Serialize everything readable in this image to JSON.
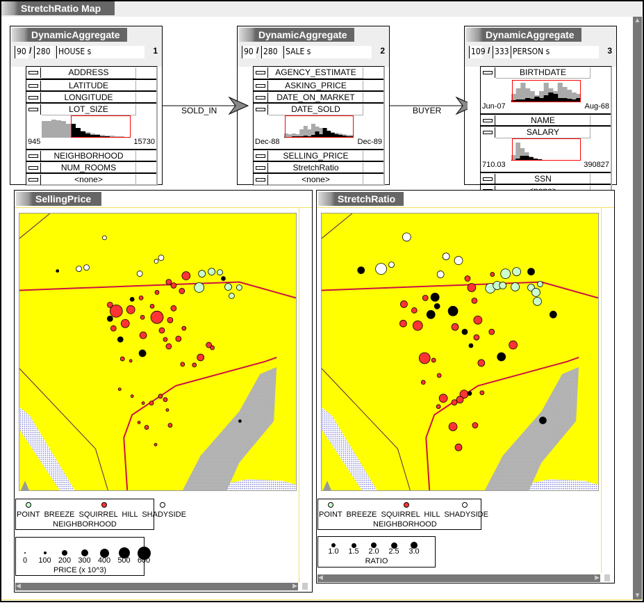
{
  "window": {
    "title": "StretchRatio Map"
  },
  "aggregates": [
    {
      "title": "DynamicAggregate",
      "selected": "90",
      "total": "280",
      "relation": "HOUSE s",
      "index": "1",
      "attributes": [
        {
          "label": "ADDRESS"
        },
        {
          "label": "LATITUDE"
        },
        {
          "label": "LONGITUDE"
        },
        {
          "label": "LOT_SIZE",
          "hist": {
            "lo": "945",
            "hi": "15730"
          }
        },
        {
          "label": "NEIGHBORHOOD"
        },
        {
          "label": "NUM_ROOMS"
        },
        {
          "label": "<none>"
        }
      ]
    },
    {
      "title": "DynamicAggregate",
      "selected": "90",
      "total": "280",
      "relation": "SALE s",
      "index": "2",
      "attributes": [
        {
          "label": "AGENCY_ESTIMATE"
        },
        {
          "label": "ASKING_PRICE"
        },
        {
          "label": "DATE_ON_MARKET"
        },
        {
          "label": "DATE_SOLD",
          "hist": {
            "lo": "Dec-88",
            "hi": "Dec-89"
          }
        },
        {
          "label": "SELLING_PRICE"
        },
        {
          "label": "StretchRatio"
        },
        {
          "label": "<none>"
        }
      ]
    },
    {
      "title": "DynamicAggregate",
      "selected": "109",
      "total": "333",
      "relation": "PERSON s",
      "index": "3",
      "attributes": [
        {
          "label": "BIRTHDATE",
          "hist": {
            "lo": "Jun-07",
            "hi": "Aug-68"
          }
        },
        {
          "label": "NAME"
        },
        {
          "label": "SALARY",
          "hist": {
            "lo": "710.03",
            "hi": "390827"
          }
        },
        {
          "label": "SSN"
        },
        {
          "label": "<none>"
        }
      ]
    }
  ],
  "relations": [
    {
      "label": "SOLD_IN"
    },
    {
      "label": "BUYER"
    }
  ],
  "panels": [
    {
      "title": "SellingPrice",
      "size_legend": {
        "title": "PRICE (x 10^3)",
        "values": [
          "0",
          "100",
          "200",
          "300",
          "400",
          "500",
          "600"
        ]
      }
    },
    {
      "title": "StretchRatio",
      "size_legend": {
        "title": "RATIO",
        "values": [
          "1.0",
          "1.5",
          "2.0",
          "2.5",
          "3.0"
        ]
      }
    }
  ],
  "color_legend": {
    "title": "NEIGHBORHOOD",
    "items": [
      {
        "label": "POINT BREEZE",
        "color": "#ccffcc"
      },
      {
        "label": "SQUIRREL HILL",
        "color": "#ff3333"
      },
      {
        "label": "SHADYSIDE",
        "color": "#ffffff"
      }
    ]
  },
  "colors": {
    "map_bg": "#ffff00",
    "boundary": "#cc1144",
    "highlight": "#ff0000",
    "tab": "#666666"
  }
}
